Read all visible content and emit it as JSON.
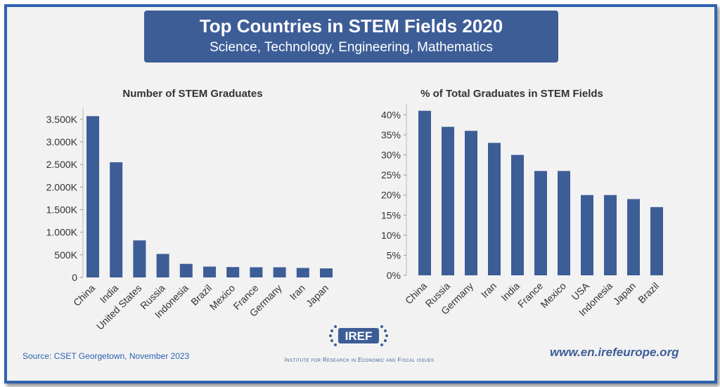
{
  "header": {
    "title": "Top Countries in STEM Fields 2020",
    "subtitle": "Science, Technology, Engineering, Mathematics"
  },
  "colors": {
    "bar": "#3d5d97",
    "frame": "#2e63b0",
    "banner": "#3d5d97",
    "background": "#f2f2f2"
  },
  "chart_data": [
    {
      "type": "bar",
      "title": "Number of STEM Graduates",
      "categories": [
        "China",
        "India",
        "United States",
        "Russia",
        "Indonesia",
        "Brazil",
        "Mexico",
        "France",
        "Germany",
        "Iran",
        "Japan"
      ],
      "values": [
        3570,
        2550,
        820,
        520,
        300,
        240,
        230,
        225,
        225,
        210,
        200
      ],
      "yticks": [
        0,
        500,
        1000,
        1500,
        2000,
        2500,
        3000,
        3500
      ],
      "ytick_labels": [
        "0",
        "500K",
        "1.000K",
        "1.500K",
        "2.000K",
        "2.500K",
        "3.000K",
        "3.500K"
      ],
      "ylim": [
        0,
        3700
      ],
      "grid": false,
      "legend": false
    },
    {
      "type": "bar",
      "title": "% of Total Graduates in STEM Fields",
      "categories": [
        "China",
        "Russia",
        "Germany",
        "Iran",
        "India",
        "France",
        "Mexico",
        "USA",
        "Indonesia",
        "Japan",
        "Brazil"
      ],
      "values": [
        41,
        37,
        36,
        33,
        30,
        26,
        26,
        20,
        20,
        19,
        17
      ],
      "yticks": [
        0,
        5,
        10,
        15,
        20,
        25,
        30,
        35,
        40
      ],
      "ytick_labels": [
        "0%",
        "5%",
        "10%",
        "15%",
        "20%",
        "25%",
        "30%",
        "35%",
        "40%"
      ],
      "ylim": [
        0,
        42
      ],
      "grid": false,
      "legend": false
    }
  ],
  "footer": {
    "source": "Source: CSET Georgetown, November 2023",
    "logo_text": "IREF",
    "institute": "Institute for Research in Economic and Fiscal issues",
    "website": "www.en.irefeurope.org"
  }
}
